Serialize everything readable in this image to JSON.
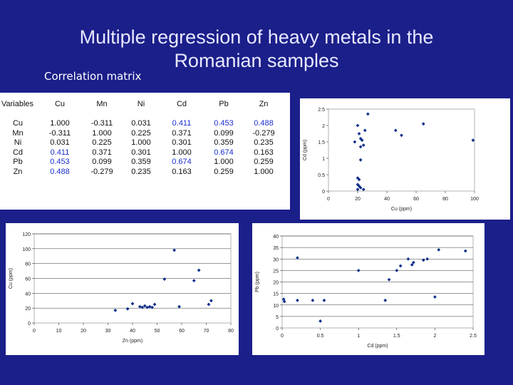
{
  "slide": {
    "title_line1": "Multiple regression of heavy metals in the",
    "title_line2": "Romanian samples",
    "subtitle": "Correlation matrix"
  },
  "matrix": {
    "headers": [
      "Variables",
      "Cu",
      "Mn",
      "Ni",
      "Cd",
      "Pb",
      "Zn"
    ],
    "rows": [
      {
        "label": "Cu",
        "values": [
          "1.000",
          "-0.311",
          "0.031",
          "0.411",
          "0.453",
          "0.488"
        ]
      },
      {
        "label": "Mn",
        "values": [
          "-0.311",
          "1.000",
          "0.225",
          "0.371",
          "0.099",
          "-0.279"
        ]
      },
      {
        "label": "Ni",
        "values": [
          "0.031",
          "0.225",
          "1.000",
          "0.301",
          "0.359",
          "0.235"
        ]
      },
      {
        "label": "Cd",
        "values": [
          "0.411",
          "0.371",
          "0.301",
          "1.000",
          "0.674",
          "0.163"
        ]
      },
      {
        "label": "Pb",
        "values": [
          "0.453",
          "0.099",
          "0.359",
          "0.674",
          "1.000",
          "0.259"
        ]
      },
      {
        "label": "Zn",
        "values": [
          "0.488",
          "-0.279",
          "0.235",
          "0.163",
          "0.259",
          "1.000"
        ]
      }
    ],
    "highlight_color": "#1b2fd0"
  },
  "chart_data": [
    {
      "type": "scatter",
      "xlabel": "Cu (ppm)",
      "ylabel": "Cd (ppm)",
      "xlim": [
        0,
        100
      ],
      "ylim": [
        0,
        2.5
      ],
      "xticks": [
        "0",
        "20",
        "40",
        "60",
        "80",
        "100"
      ],
      "yticks": [
        "0",
        "0.5",
        "1",
        "1.5",
        "2",
        "2.5"
      ],
      "grid": false,
      "color": "#10308a",
      "points": [
        [
          18,
          1.5
        ],
        [
          20,
          2.0
        ],
        [
          21,
          1.75
        ],
        [
          22,
          1.6
        ],
        [
          22,
          1.35
        ],
        [
          23,
          1.55
        ],
        [
          24,
          1.4
        ],
        [
          25,
          1.85
        ],
        [
          27,
          2.35
        ],
        [
          20,
          0.4
        ],
        [
          21,
          0.35
        ],
        [
          20,
          0.2
        ],
        [
          21,
          0.15
        ],
        [
          22,
          0.1
        ],
        [
          20,
          0.05
        ],
        [
          24,
          0.05
        ],
        [
          22,
          0.95
        ],
        [
          46,
          1.85
        ],
        [
          50,
          1.7
        ],
        [
          65,
          2.05
        ],
        [
          99,
          1.55
        ]
      ]
    },
    {
      "type": "scatter",
      "xlabel": "Zn (ppm)",
      "ylabel": "Cu (ppm)",
      "xlim": [
        0,
        80
      ],
      "ylim": [
        0,
        120
      ],
      "xticks": [
        "0",
        "10",
        "20",
        "30",
        "40",
        "50",
        "60",
        "70",
        "80"
      ],
      "yticks": [
        "0",
        "20",
        "40",
        "60",
        "80",
        "100",
        "120"
      ],
      "grid": true,
      "color": "#10308a",
      "points": [
        [
          33,
          17
        ],
        [
          38,
          19
        ],
        [
          40,
          26
        ],
        [
          43,
          22
        ],
        [
          44,
          21
        ],
        [
          45,
          23
        ],
        [
          46,
          21
        ],
        [
          47,
          22
        ],
        [
          48,
          21
        ],
        [
          49,
          25
        ],
        [
          53,
          59
        ],
        [
          57,
          98
        ],
        [
          59,
          22
        ],
        [
          65,
          57
        ],
        [
          67,
          71
        ],
        [
          71,
          25
        ],
        [
          72,
          30
        ]
      ]
    },
    {
      "type": "scatter",
      "xlabel": "Cd (ppm)",
      "ylabel": "Pb (ppm)",
      "xlim": [
        0,
        2.5
      ],
      "ylim": [
        0,
        40
      ],
      "xticks": [
        "0",
        "0.5",
        "1",
        "1.5",
        "2",
        "2.5"
      ],
      "yticks": [
        "0",
        "5",
        "10",
        "15",
        "20",
        "25",
        "30",
        "35",
        "40"
      ],
      "grid": true,
      "color": "#10308a",
      "points": [
        [
          0.02,
          12.5
        ],
        [
          0.03,
          11.5
        ],
        [
          0.2,
          12
        ],
        [
          0.2,
          30.5
        ],
        [
          0.4,
          12
        ],
        [
          0.5,
          3
        ],
        [
          0.55,
          12
        ],
        [
          1.0,
          25
        ],
        [
          1.35,
          12
        ],
        [
          1.4,
          21
        ],
        [
          1.5,
          25
        ],
        [
          1.55,
          27
        ],
        [
          1.65,
          30
        ],
        [
          1.7,
          27.5
        ],
        [
          1.72,
          28.5
        ],
        [
          1.85,
          29.5
        ],
        [
          1.9,
          30
        ],
        [
          2.0,
          13.5
        ],
        [
          2.05,
          34
        ],
        [
          2.4,
          33.5
        ]
      ]
    }
  ]
}
